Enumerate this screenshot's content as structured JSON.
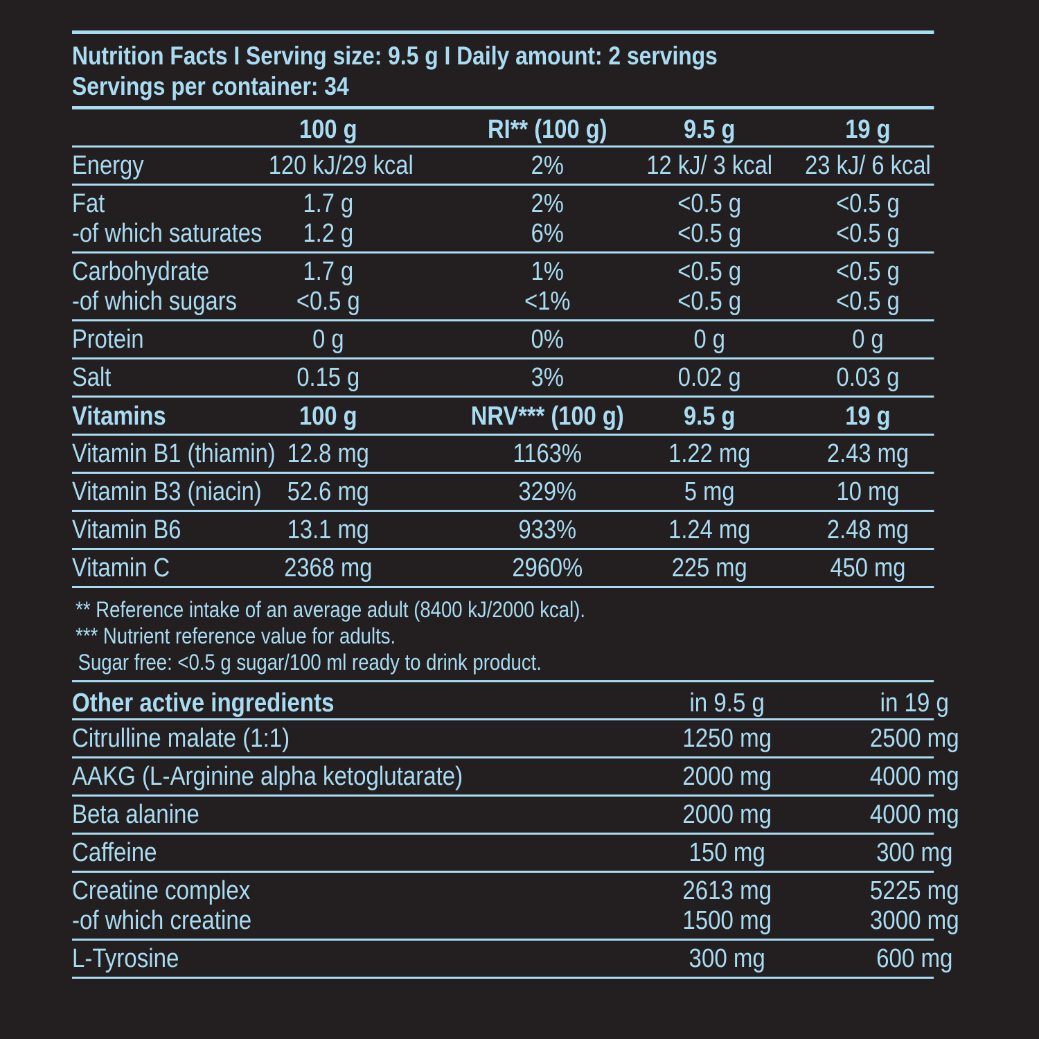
{
  "header": {
    "line1": "Nutrition Facts I Serving size: 9.5 g I Daily amount: 2 servings",
    "line2": "Servings per container: 34"
  },
  "nutrition": {
    "columns": [
      "",
      "100 g",
      "RI** (100 g)",
      "9.5 g",
      "19 g"
    ],
    "groups": [
      {
        "rows": [
          [
            "Energy",
            "120 kJ/29 kcal",
            "2%",
            "12 kJ/ 3 kcal",
            "23 kJ/ 6 kcal"
          ]
        ]
      },
      {
        "rows": [
          [
            "Fat",
            "1.7 g",
            "2%",
            "<0.5 g",
            "<0.5 g"
          ],
          [
            "-of which saturates",
            "1.2 g",
            "6%",
            "<0.5 g",
            "<0.5 g"
          ]
        ]
      },
      {
        "rows": [
          [
            "Carbohydrate",
            "1.7 g",
            "1%",
            "<0.5 g",
            "<0.5 g"
          ],
          [
            "-of which sugars",
            "<0.5 g",
            "<1%",
            "<0.5 g",
            "<0.5 g"
          ]
        ]
      },
      {
        "rows": [
          [
            "Protein",
            "0 g",
            "0%",
            "0 g",
            "0 g"
          ]
        ]
      },
      {
        "rows": [
          [
            "Salt",
            "0.15 g",
            "3%",
            "0.02 g",
            "0.03 g"
          ]
        ]
      }
    ]
  },
  "vitamins": {
    "columns": [
      "Vitamins",
      "100 g",
      "NRV*** (100 g)",
      "9.5 g",
      "19 g"
    ],
    "rows": [
      [
        "Vitamin B1 (thiamin)",
        "12.8 mg",
        "1163%",
        "1.22 mg",
        "2.43 mg"
      ],
      [
        "Vitamin B3 (niacin)",
        "52.6 mg",
        "329%",
        "5 mg",
        "10 mg"
      ],
      [
        "Vitamin B6",
        "13.1 mg",
        "933%",
        "1.24 mg",
        "2.48 mg"
      ],
      [
        "Vitamin C",
        "2368 mg",
        "2960%",
        "225 mg",
        "450 mg"
      ]
    ]
  },
  "notes": [
    "** Reference intake of an average adult (8400 kJ/2000 kcal).",
    "*** Nutrient reference value for adults.",
    "Sugar free: <0.5 g sugar/100 ml ready to drink product."
  ],
  "other": {
    "columns": [
      "Other active ingredients",
      "in 9.5 g",
      "in 19 g"
    ],
    "groups": [
      {
        "rows": [
          [
            "Citrulline malate (1:1)",
            "1250 mg",
            "2500 mg"
          ]
        ]
      },
      {
        "rows": [
          [
            "AAKG (L-Arginine alpha ketoglutarate)",
            "2000 mg",
            "4000 mg"
          ]
        ]
      },
      {
        "rows": [
          [
            "Beta alanine",
            "2000 mg",
            "4000 mg"
          ]
        ]
      },
      {
        "rows": [
          [
            "Caffeine",
            "150 mg",
            "300 mg"
          ]
        ]
      },
      {
        "rows": [
          [
            "Creatine complex",
            "2613 mg",
            "5225 mg"
          ],
          [
            "-of which creatine",
            "1500 mg",
            "3000 mg"
          ]
        ]
      },
      {
        "rows": [
          [
            "L-Tyrosine",
            "300 mg",
            "600 mg"
          ]
        ]
      }
    ]
  },
  "colors": {
    "background": "#231f20",
    "text": "#a9dcf2",
    "rule": "#a9dcf2"
  }
}
